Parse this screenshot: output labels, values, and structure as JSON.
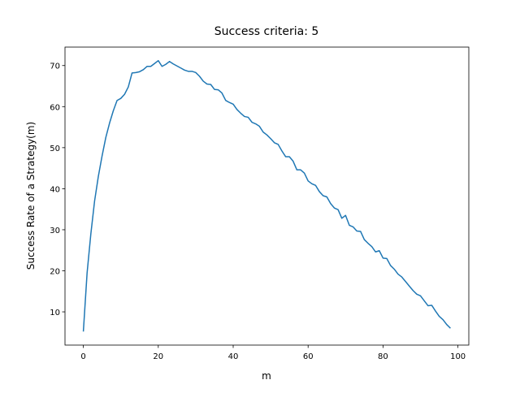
{
  "chart_data": {
    "type": "line",
    "title": "Success criteria: 5",
    "xlabel": "m",
    "ylabel": "Success Rate of a Strategy(m)",
    "x": [
      0,
      1,
      2,
      3,
      4,
      5,
      6,
      7,
      8,
      9,
      10,
      11,
      12,
      13,
      14,
      15,
      16,
      17,
      18,
      19,
      20,
      21,
      22,
      23,
      24,
      25,
      26,
      27,
      28,
      29,
      30,
      31,
      32,
      33,
      34,
      35,
      36,
      37,
      38,
      39,
      40,
      41,
      42,
      43,
      44,
      45,
      46,
      47,
      48,
      49,
      50,
      51,
      52,
      53,
      54,
      55,
      56,
      57,
      58,
      59,
      60,
      61,
      62,
      63,
      64,
      65,
      66,
      67,
      68,
      69,
      70,
      71,
      72,
      73,
      74,
      75,
      76,
      77,
      78,
      79,
      80,
      81,
      82,
      83,
      84,
      85,
      86,
      87,
      88,
      89,
      90,
      91,
      92,
      93,
      94,
      95,
      96,
      97,
      98
    ],
    "values": [
      5.2,
      19.5,
      29,
      37,
      43,
      48,
      52.5,
      56,
      59,
      61.5,
      62,
      63,
      64.8,
      68.2,
      68.3,
      68.5,
      69,
      69.8,
      69.8,
      70.5,
      71.2,
      69.8,
      70.3,
      71,
      70.4,
      69.9,
      69.4,
      68.9,
      68.6,
      68.6,
      68.3,
      67.4,
      66.2,
      65.5,
      65.4,
      64.2,
      64.1,
      63.3,
      61.5,
      61,
      60.6,
      59.3,
      58.4,
      57.6,
      57.4,
      56.2,
      55.8,
      55.2,
      53.8,
      53.1,
      52.2,
      51.2,
      50.8,
      49.2,
      47.8,
      47.8,
      46.7,
      44.6,
      44.6,
      43.8,
      41.9,
      41.2,
      40.8,
      39.3,
      38.3,
      38,
      36.4,
      35.3,
      34.9,
      32.8,
      33.5,
      31.1,
      30.7,
      29.7,
      29.6,
      27.6,
      26.7,
      25.9,
      24.6,
      24.9,
      23.1,
      23,
      21.3,
      20.4,
      19.2,
      18.5,
      17.4,
      16.3,
      15.2,
      14.3,
      13.9,
      12.7,
      11.5,
      11.6,
      10.2,
      8.9,
      8.1,
      6.9,
      6.0
    ],
    "color": "#1f77b4",
    "xlim": [
      -4.9,
      102.9
    ],
    "xticks": [
      0,
      20,
      40,
      60,
      80,
      100
    ],
    "ylim": [
      1.9,
      74.5
    ],
    "yticks": [
      10,
      20,
      30,
      40,
      50,
      60,
      70
    ]
  }
}
